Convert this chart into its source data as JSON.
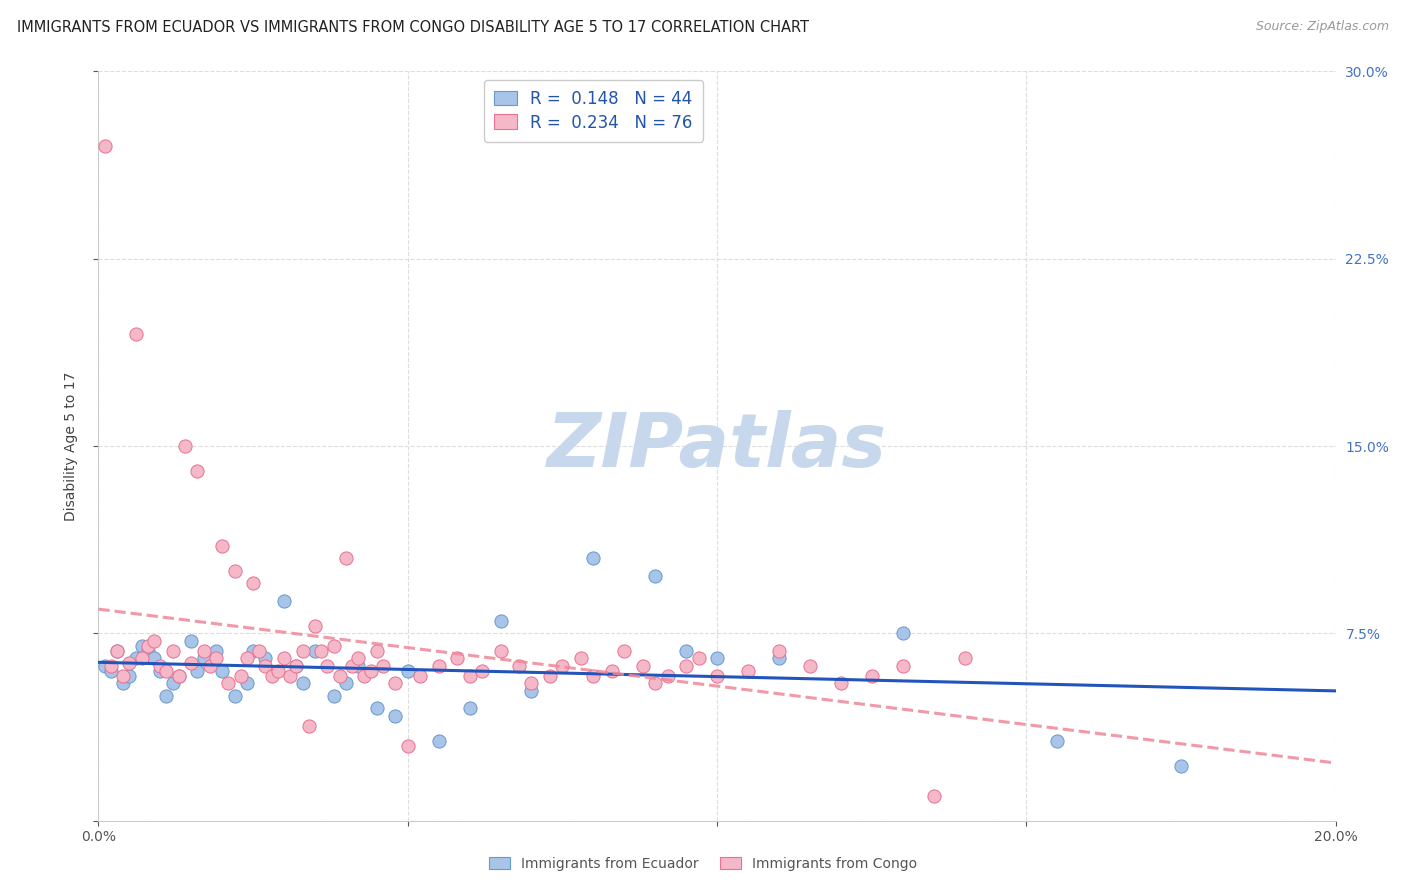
{
  "title": "IMMIGRANTS FROM ECUADOR VS IMMIGRANTS FROM CONGO DISABILITY AGE 5 TO 17 CORRELATION CHART",
  "source": "Source: ZipAtlas.com",
  "ylabel": "Disability Age 5 to 17",
  "xlabel_label1": "Immigrants from Ecuador",
  "xlabel_label2": "Immigrants from Congo",
  "xlim": [
    0.0,
    0.2
  ],
  "ylim": [
    0.0,
    0.3
  ],
  "ytick_labels_right": [
    "7.5%",
    "15.0%",
    "22.5%",
    "30.0%"
  ],
  "ytick_vals_right": [
    0.075,
    0.15,
    0.225,
    0.3
  ],
  "ecuador_color": "#A8C4E8",
  "congo_color": "#F5B8C8",
  "ecuador_edge": "#6699CC",
  "congo_edge": "#E87090",
  "trend_ecuador_color": "#2255BB",
  "trend_congo_color": "#EE8899",
  "watermark_color": "#C8D8EC",
  "background_color": "#FFFFFF",
  "title_fontsize": 10.5,
  "axis_label_fontsize": 10,
  "tick_fontsize": 10,
  "ecuador_x": [
    0.001,
    0.002,
    0.003,
    0.004,
    0.005,
    0.006,
    0.007,
    0.008,
    0.009,
    0.01,
    0.011,
    0.012,
    0.013,
    0.015,
    0.016,
    0.017,
    0.019,
    0.02,
    0.022,
    0.024,
    0.025,
    0.027,
    0.03,
    0.032,
    0.033,
    0.035,
    0.038,
    0.04,
    0.042,
    0.045,
    0.048,
    0.05,
    0.055,
    0.06,
    0.065,
    0.07,
    0.08,
    0.09,
    0.095,
    0.1,
    0.11,
    0.13,
    0.155,
    0.175
  ],
  "ecuador_y": [
    0.062,
    0.06,
    0.068,
    0.055,
    0.058,
    0.065,
    0.07,
    0.068,
    0.065,
    0.06,
    0.05,
    0.055,
    0.058,
    0.072,
    0.06,
    0.065,
    0.068,
    0.06,
    0.05,
    0.055,
    0.068,
    0.065,
    0.088,
    0.062,
    0.055,
    0.068,
    0.05,
    0.055,
    0.062,
    0.045,
    0.042,
    0.06,
    0.032,
    0.045,
    0.08,
    0.052,
    0.105,
    0.098,
    0.068,
    0.065,
    0.065,
    0.075,
    0.032,
    0.022
  ],
  "congo_x": [
    0.001,
    0.002,
    0.003,
    0.004,
    0.005,
    0.006,
    0.007,
    0.008,
    0.009,
    0.01,
    0.011,
    0.012,
    0.013,
    0.014,
    0.015,
    0.016,
    0.017,
    0.018,
    0.019,
    0.02,
    0.021,
    0.022,
    0.023,
    0.024,
    0.025,
    0.026,
    0.027,
    0.028,
    0.029,
    0.03,
    0.031,
    0.032,
    0.033,
    0.034,
    0.035,
    0.036,
    0.037,
    0.038,
    0.039,
    0.04,
    0.041,
    0.042,
    0.043,
    0.044,
    0.045,
    0.046,
    0.048,
    0.05,
    0.052,
    0.055,
    0.058,
    0.06,
    0.062,
    0.065,
    0.068,
    0.07,
    0.073,
    0.075,
    0.078,
    0.08,
    0.083,
    0.085,
    0.088,
    0.09,
    0.092,
    0.095,
    0.097,
    0.1,
    0.105,
    0.11,
    0.115,
    0.12,
    0.125,
    0.13,
    0.135,
    0.14
  ],
  "congo_y": [
    0.27,
    0.062,
    0.068,
    0.058,
    0.063,
    0.195,
    0.065,
    0.07,
    0.072,
    0.062,
    0.06,
    0.068,
    0.058,
    0.15,
    0.063,
    0.14,
    0.068,
    0.062,
    0.065,
    0.11,
    0.055,
    0.1,
    0.058,
    0.065,
    0.095,
    0.068,
    0.062,
    0.058,
    0.06,
    0.065,
    0.058,
    0.062,
    0.068,
    0.038,
    0.078,
    0.068,
    0.062,
    0.07,
    0.058,
    0.105,
    0.062,
    0.065,
    0.058,
    0.06,
    0.068,
    0.062,
    0.055,
    0.03,
    0.058,
    0.062,
    0.065,
    0.058,
    0.06,
    0.068,
    0.062,
    0.055,
    0.058,
    0.062,
    0.065,
    0.058,
    0.06,
    0.068,
    0.062,
    0.055,
    0.058,
    0.062,
    0.065,
    0.058,
    0.06,
    0.068,
    0.062,
    0.055,
    0.058,
    0.062,
    0.01,
    0.065
  ]
}
